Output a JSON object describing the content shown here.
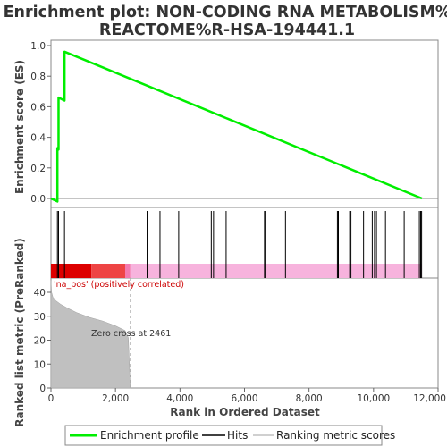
{
  "chart_data": {
    "type": "line",
    "title": [
      "Enrichment plot: NON-CODING RNA METABOLISM%",
      "REACTOME%R-HSA-194441.1"
    ],
    "xlabel": "Rank in Ordered Dataset",
    "ylabel_top": "Enrichment score (ES)",
    "ylabel_bottom": "Ranked list metric (PreRanked)",
    "xlim": [
      0,
      12000
    ],
    "x_ticks": [
      "0",
      "2,000",
      "4,000",
      "6,000",
      "8,000",
      "10,000",
      "12,000"
    ],
    "x_tick_values": [
      0,
      2000,
      4000,
      6000,
      8000,
      10000,
      12000
    ],
    "es_ylim": [
      -0.05,
      1.0
    ],
    "es_ticks": [
      "0.0",
      "0.2",
      "0.4",
      "0.6",
      "0.8",
      "1.0"
    ],
    "es_tick_values": [
      0.0,
      0.2,
      0.4,
      0.6,
      0.8,
      1.0
    ],
    "metric_ylim": [
      0,
      46
    ],
    "metric_ticks": [
      "0",
      "10",
      "20",
      "30",
      "40"
    ],
    "metric_tick_values": [
      0,
      10,
      20,
      30,
      40
    ],
    "enrichment_profile": {
      "name": "Enrichment profile",
      "color": "#00ee00",
      "x": [
        0,
        200,
        200,
        235,
        235,
        420,
        420,
        11500
      ],
      "y": [
        0.0,
        -0.02,
        0.33,
        0.32,
        0.66,
        0.64,
        0.96,
        0.0
      ]
    },
    "hits": [
      200,
      235,
      420,
      2980,
      3380,
      3960,
      4970,
      5040,
      5430,
      6620,
      6650,
      7270,
      8880,
      8910,
      9260,
      9300,
      9690,
      9960,
      10030,
      10090,
      10370,
      10950,
      11420,
      11460,
      11490
    ],
    "ranked_metric": {
      "name": "Ranking metric scores",
      "color": "#c0c0c0",
      "x": [
        0,
        20,
        60,
        150,
        300,
        500,
        800,
        1200,
        1600,
        2000,
        2300,
        2400,
        2461
      ],
      "y": [
        45,
        40,
        38,
        36.5,
        35,
        33.5,
        31.5,
        29.5,
        28,
        26,
        24,
        21,
        0
      ]
    },
    "zero_cross": {
      "rank": 2461,
      "label": "Zero cross at 2461"
    },
    "correlation_label": "'na_pos' (positively correlated)",
    "correlation_bar_colors": {
      "dark": "#dd0000",
      "light": "#ee4444",
      "pink": "#f7b3dd"
    },
    "legend": [
      {
        "label": "Enrichment profile",
        "color": "#00ee00"
      },
      {
        "label": "Hits",
        "color": "#000000"
      },
      {
        "label": "Ranking metric scores",
        "color": "#c0c0c0"
      }
    ]
  }
}
